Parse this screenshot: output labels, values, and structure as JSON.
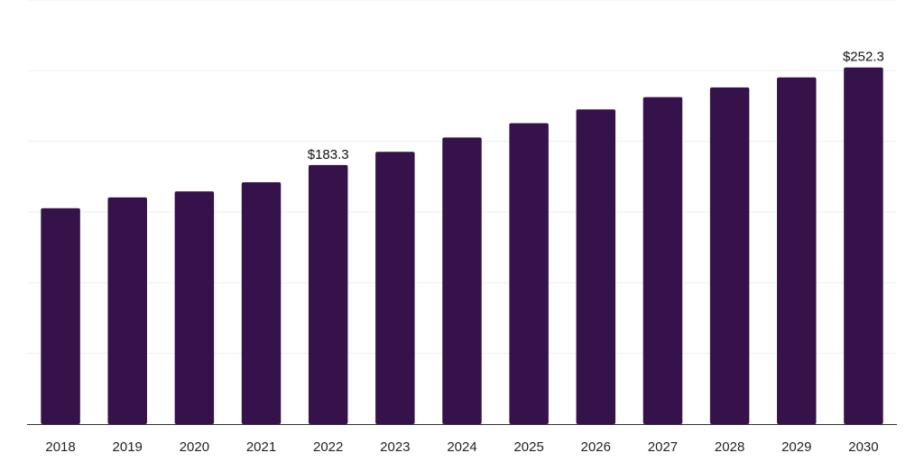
{
  "chart_data": {
    "type": "bar",
    "title": "",
    "xlabel": "",
    "ylabel": "",
    "categories": [
      "2018",
      "2019",
      "2020",
      "2021",
      "2022",
      "2023",
      "2024",
      "2025",
      "2026",
      "2027",
      "2028",
      "2029",
      "2030"
    ],
    "values": [
      152.7,
      160.4,
      164.6,
      171.1,
      183.3,
      192.6,
      202.7,
      212.9,
      222.6,
      231.3,
      238.2,
      245.3,
      252.3
    ],
    "ylim": [
      0,
      300
    ],
    "grid": true,
    "legend": "none",
    "data_labels": [
      {
        "index": 4,
        "text": "$183.3"
      },
      {
        "index": 12,
        "text": "$252.3"
      }
    ],
    "colors": {
      "bar": "#36124a"
    }
  }
}
